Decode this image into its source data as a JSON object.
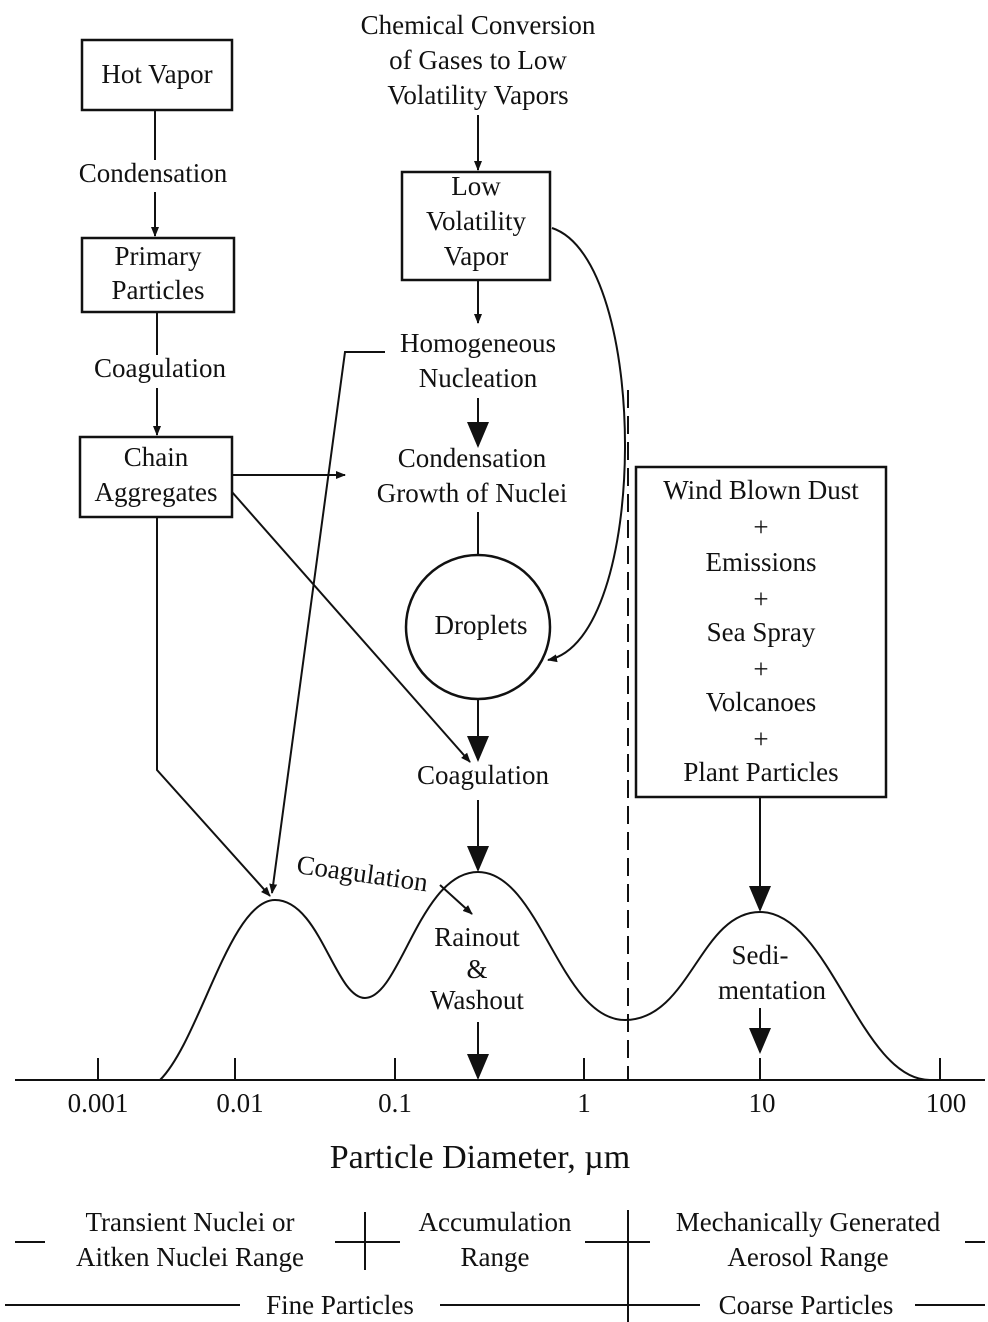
{
  "source": {
    "lines": [
      "Chemical Conversion",
      "of Gases to Low",
      "Volatility Vapors"
    ]
  },
  "boxes": [
    {
      "lines": [
        "Hot Vapor"
      ]
    },
    {
      "lines": [
        "Primary",
        "Particles"
      ]
    },
    {
      "lines": [
        "Chain",
        "Aggregates"
      ]
    },
    {
      "lines": [
        "Low",
        "Volatility",
        "Vapor"
      ]
    },
    {
      "lines": [
        "Wind Blown Dust",
        "+",
        "Emissions",
        "+",
        "Sea Spray",
        "+",
        "Volcanoes",
        "+",
        "Plant Particles"
      ]
    }
  ],
  "steps": [
    {
      "lines": [
        "Condensation"
      ]
    },
    {
      "lines": [
        "Coagulation"
      ]
    },
    {
      "lines": [
        "Homogeneous",
        "Nucleation"
      ]
    },
    {
      "lines": [
        "Condensation",
        "Growth of Nuclei"
      ]
    },
    {
      "lines": [
        "Droplets"
      ]
    },
    {
      "lines": [
        "Coagulation"
      ]
    }
  ],
  "curve_labels": [
    {
      "lines": [
        "Coagulation"
      ]
    },
    {
      "lines": [
        "Rainout",
        "&",
        "Washout"
      ]
    },
    {
      "lines": [
        "Sedi-",
        "mentation"
      ]
    }
  ],
  "axis": {
    "ticks": [
      "0.001",
      "0.01",
      "0.1",
      "1",
      "10",
      "100"
    ],
    "label": "Particle Diameter, µm"
  },
  "ranges": [
    {
      "lines": [
        "Transient Nuclei or",
        "Aitken Nuclei Range"
      ]
    },
    {
      "lines": [
        "Accumulation",
        "Range"
      ]
    },
    {
      "lines": [
        "Mechanically Generated",
        "Aerosol Range"
      ]
    }
  ],
  "sizes": [
    "Fine Particles",
    "Coarse Particles"
  ]
}
